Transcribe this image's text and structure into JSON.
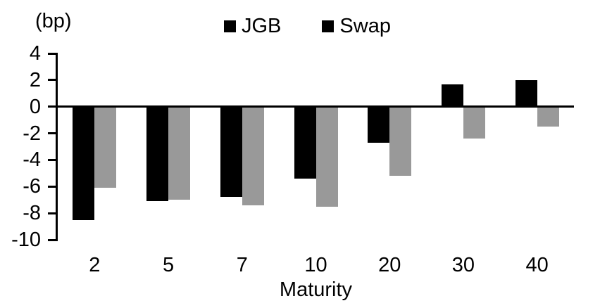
{
  "bp_label": "(bp)",
  "chart_data": {
    "type": "bar",
    "title": "",
    "xlabel": "Maturity",
    "ylabel": "(bp)",
    "categories": [
      "2",
      "5",
      "7",
      "10",
      "20",
      "30",
      "40"
    ],
    "series": [
      {
        "name": "JGB",
        "color": "#000000",
        "values": [
          -8.5,
          -7.1,
          -6.8,
          -5.4,
          -2.7,
          1.7,
          2.0
        ]
      },
      {
        "name": "Swap",
        "color": "#999999",
        "values": [
          -6.1,
          -7.0,
          -7.4,
          -7.5,
          -5.2,
          -2.4,
          -1.5
        ]
      }
    ],
    "ylim": [
      -10,
      4
    ],
    "yticks": [
      4,
      2,
      0,
      -2,
      -4,
      -6,
      -8,
      -10
    ],
    "grid": false,
    "legend_position": "top-center",
    "axis_color": "#000000",
    "background_color": "#ffffff"
  }
}
